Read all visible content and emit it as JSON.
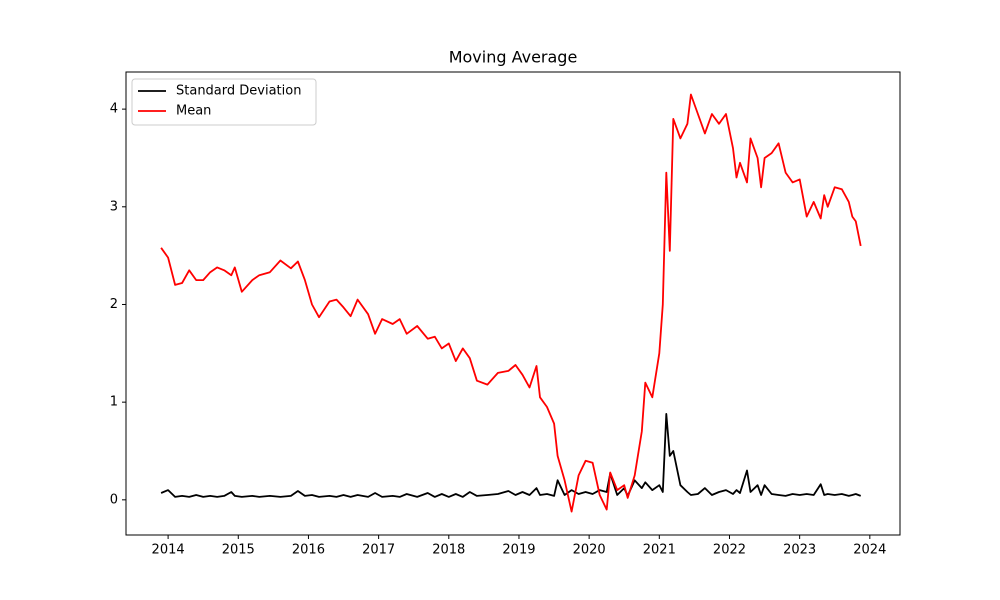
{
  "chart_data": {
    "type": "line",
    "title": "Moving Average",
    "x": [
      2013.9,
      2014.0,
      2014.1,
      2014.2,
      2014.3,
      2014.4,
      2014.5,
      2014.6,
      2014.7,
      2014.8,
      2014.9,
      2014.95,
      2015.05,
      2015.2,
      2015.3,
      2015.45,
      2015.6,
      2015.75,
      2015.85,
      2015.95,
      2016.05,
      2016.15,
      2016.3,
      2016.4,
      2016.5,
      2016.6,
      2016.7,
      2016.85,
      2016.95,
      2017.05,
      2017.2,
      2017.3,
      2017.4,
      2017.55,
      2017.7,
      2017.8,
      2017.9,
      2018.0,
      2018.1,
      2018.2,
      2018.3,
      2018.4,
      2018.55,
      2018.7,
      2018.85,
      2018.95,
      2019.05,
      2019.15,
      2019.25,
      2019.3,
      2019.4,
      2019.5,
      2019.55,
      2019.65,
      2019.75,
      2019.85,
      2019.95,
      2020.05,
      2020.15,
      2020.25,
      2020.3,
      2020.4,
      2020.5,
      2020.55,
      2020.65,
      2020.75,
      2020.8,
      2020.9,
      2021.0,
      2021.05,
      2021.1,
      2021.15,
      2021.2,
      2021.3,
      2021.4,
      2021.45,
      2021.55,
      2021.65,
      2021.75,
      2021.85,
      2021.95,
      2022.05,
      2022.1,
      2022.15,
      2022.25,
      2022.3,
      2022.4,
      2022.45,
      2022.5,
      2022.6,
      2022.7,
      2022.8,
      2022.9,
      2023.0,
      2023.1,
      2023.2,
      2023.3,
      2023.35,
      2023.4,
      2023.5,
      2023.6,
      2023.7,
      2023.75,
      2023.8,
      2023.87
    ],
    "series": [
      {
        "name": "Standard Deviation",
        "color": "#000000",
        "values": [
          0.07,
          0.1,
          0.03,
          0.04,
          0.03,
          0.05,
          0.03,
          0.04,
          0.03,
          0.04,
          0.08,
          0.04,
          0.03,
          0.04,
          0.03,
          0.04,
          0.03,
          0.04,
          0.09,
          0.04,
          0.05,
          0.03,
          0.04,
          0.03,
          0.05,
          0.03,
          0.05,
          0.03,
          0.07,
          0.03,
          0.04,
          0.03,
          0.06,
          0.03,
          0.07,
          0.03,
          0.06,
          0.03,
          0.06,
          0.03,
          0.08,
          0.04,
          0.05,
          0.06,
          0.09,
          0.05,
          0.08,
          0.05,
          0.12,
          0.05,
          0.06,
          0.04,
          0.2,
          0.05,
          0.1,
          0.06,
          0.08,
          0.06,
          0.1,
          0.08,
          0.27,
          0.05,
          0.12,
          0.04,
          0.2,
          0.12,
          0.18,
          0.1,
          0.15,
          0.08,
          0.88,
          0.45,
          0.5,
          0.15,
          0.08,
          0.05,
          0.06,
          0.12,
          0.05,
          0.08,
          0.1,
          0.06,
          0.1,
          0.07,
          0.3,
          0.08,
          0.15,
          0.05,
          0.15,
          0.06,
          0.05,
          0.04,
          0.06,
          0.05,
          0.06,
          0.05,
          0.16,
          0.05,
          0.06,
          0.05,
          0.06,
          0.04,
          0.05,
          0.06,
          0.04
        ]
      },
      {
        "name": "Mean",
        "color": "#ff0000",
        "values": [
          2.58,
          2.48,
          2.2,
          2.22,
          2.35,
          2.25,
          2.25,
          2.33,
          2.38,
          2.35,
          2.3,
          2.38,
          2.13,
          2.25,
          2.3,
          2.33,
          2.45,
          2.37,
          2.44,
          2.25,
          2.0,
          1.87,
          2.03,
          2.05,
          1.97,
          1.88,
          2.05,
          1.9,
          1.7,
          1.85,
          1.8,
          1.85,
          1.7,
          1.78,
          1.65,
          1.67,
          1.55,
          1.6,
          1.42,
          1.55,
          1.45,
          1.22,
          1.18,
          1.3,
          1.32,
          1.38,
          1.28,
          1.15,
          1.37,
          1.05,
          0.95,
          0.78,
          0.45,
          0.2,
          -0.12,
          0.25,
          0.4,
          0.38,
          0.05,
          -0.1,
          0.28,
          0.1,
          0.15,
          0.02,
          0.25,
          0.7,
          1.2,
          1.05,
          1.5,
          2.0,
          3.35,
          2.55,
          3.9,
          3.7,
          3.85,
          4.15,
          3.95,
          3.75,
          3.95,
          3.85,
          3.95,
          3.6,
          3.3,
          3.45,
          3.25,
          3.7,
          3.5,
          3.2,
          3.5,
          3.55,
          3.65,
          3.35,
          3.25,
          3.28,
          2.9,
          3.05,
          2.88,
          3.12,
          3.0,
          3.2,
          3.18,
          3.05,
          2.9,
          2.85,
          2.6
        ]
      }
    ],
    "xlim": [
      2013.4,
      2024.43
    ],
    "xticks": [
      2014,
      2015,
      2016,
      2017,
      2018,
      2019,
      2020,
      2021,
      2022,
      2023,
      2024
    ],
    "ylim": [
      -0.36,
      4.38
    ],
    "yticks": [
      0,
      1,
      2,
      3,
      4
    ],
    "legend": "upper left"
  }
}
